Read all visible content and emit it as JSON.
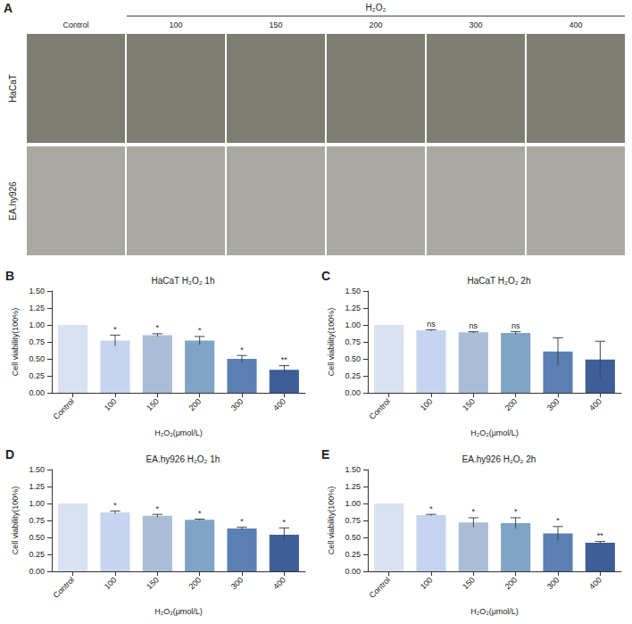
{
  "panel_a": {
    "panel": "A",
    "group_label": "H₂O₂",
    "columns": [
      "Control",
      "100",
      "150",
      "200",
      "300",
      "400"
    ],
    "rows": [
      "HaCaT",
      "EA.hy926"
    ]
  },
  "chart_data": [
    {
      "type": "bar",
      "panel": "B",
      "title": "HaCaT H₂O₂ 1h",
      "x_label": "H₂O₂(μmol/L)",
      "y_label": "Cell viability(100%)",
      "categories": [
        "Control",
        "100",
        "150",
        "200",
        "300",
        "400"
      ],
      "values": [
        1.0,
        0.77,
        0.85,
        0.77,
        0.5,
        0.34
      ],
      "errors": [
        null,
        0.08,
        0.02,
        0.06,
        0.05,
        0.06
      ],
      "significance": [
        null,
        "*",
        "*",
        "*",
        "*",
        "**"
      ],
      "colors": [
        "#d9e1f2",
        "#c6d4ef",
        "#a9bed6",
        "#7fa4c6",
        "#5a80b3",
        "#3d5e97"
      ],
      "ylim": [
        0,
        1.5
      ],
      "yticks": [
        {
          "value": 0,
          "label": "0.00"
        },
        {
          "value": 0.25,
          "label": "0.25"
        },
        {
          "value": 0.5,
          "label": "0.50"
        },
        {
          "value": 0.75,
          "label": "0.75"
        },
        {
          "value": 1,
          "label": "1.00"
        },
        {
          "value": 1.25,
          "label": "1.25"
        },
        {
          "value": 1.5,
          "label": "1.50"
        }
      ],
      "grid": false
    },
    {
      "type": "bar",
      "panel": "C",
      "title": "HaCaT H₂O₂ 2h",
      "x_label": "H₂O₂(μmol/L)",
      "y_label": "Cell viability(100%)",
      "categories": [
        "Control",
        "100",
        "150",
        "200",
        "300",
        "400"
      ],
      "values": [
        1.0,
        0.92,
        0.89,
        0.88,
        0.61,
        0.49
      ],
      "errors": [
        null,
        0.01,
        0.01,
        0.02,
        0.2,
        0.27
      ],
      "significance": [
        null,
        "ns",
        "ns",
        "ns",
        null,
        null
      ],
      "colors": [
        "#d9e1f2",
        "#c6d4ef",
        "#a9bed6",
        "#7fa4c6",
        "#5a80b3",
        "#3d5e97"
      ],
      "ylim": [
        0,
        1.5
      ],
      "yticks": [
        {
          "value": 0,
          "label": "0.00"
        },
        {
          "value": 0.25,
          "label": "0.25"
        },
        {
          "value": 0.5,
          "label": "0.50"
        },
        {
          "value": 0.75,
          "label": "0.75"
        },
        {
          "value": 1,
          "label": "1.00"
        },
        {
          "value": 1.25,
          "label": "1.25"
        },
        {
          "value": 1.5,
          "label": "1.50"
        }
      ],
      "grid": false
    },
    {
      "type": "bar",
      "panel": "D",
      "title": "EA.hy926 H₂O₂ 1h",
      "x_label": "H₂O₂(μmol/L)",
      "y_label": "Cell viability(100%)",
      "categories": [
        "Control",
        "100",
        "150",
        "200",
        "300",
        "400"
      ],
      "values": [
        1.0,
        0.87,
        0.82,
        0.76,
        0.63,
        0.54
      ],
      "errors": [
        null,
        0.02,
        0.02,
        0.01,
        0.02,
        0.1
      ],
      "significance": [
        null,
        "*",
        "*",
        "*",
        "*",
        "*"
      ],
      "colors": [
        "#d9e1f2",
        "#c6d4ef",
        "#a9bed6",
        "#7fa4c6",
        "#5a80b3",
        "#3d5e97"
      ],
      "ylim": [
        0,
        1.5
      ],
      "yticks": [
        {
          "value": 0,
          "label": "0.00"
        },
        {
          "value": 0.25,
          "label": "0.25"
        },
        {
          "value": 0.5,
          "label": "0.50"
        },
        {
          "value": 0.75,
          "label": "0.75"
        },
        {
          "value": 1,
          "label": "1.00"
        },
        {
          "value": 1.25,
          "label": "1.25"
        },
        {
          "value": 1.5,
          "label": "1.50"
        }
      ],
      "grid": false
    },
    {
      "type": "bar",
      "panel": "E",
      "title": "EA.hy926 H₂O₂ 2h",
      "x_label": "H₂O₂(μmol/L)",
      "y_label": "Cell viability(100%)",
      "categories": [
        "Control",
        "100",
        "150",
        "200",
        "300",
        "400"
      ],
      "values": [
        1.0,
        0.83,
        0.72,
        0.71,
        0.56,
        0.42
      ],
      "errors": [
        null,
        0.01,
        0.07,
        0.08,
        0.1,
        0.02
      ],
      "significance": [
        null,
        "*",
        "*",
        "*",
        "*",
        "**"
      ],
      "colors": [
        "#d9e1f2",
        "#c6d4ef",
        "#a9bed6",
        "#7fa4c6",
        "#5a80b3",
        "#3d5e97"
      ],
      "ylim": [
        0,
        1.5
      ],
      "yticks": [
        {
          "value": 0,
          "label": "0.00"
        },
        {
          "value": 0.25,
          "label": "0.25"
        },
        {
          "value": 0.5,
          "label": "0.50"
        },
        {
          "value": 0.75,
          "label": "0.75"
        },
        {
          "value": 1,
          "label": "1.00"
        },
        {
          "value": 1.25,
          "label": "1.25"
        },
        {
          "value": 1.5,
          "label": "1.50"
        }
      ],
      "grid": false
    }
  ]
}
